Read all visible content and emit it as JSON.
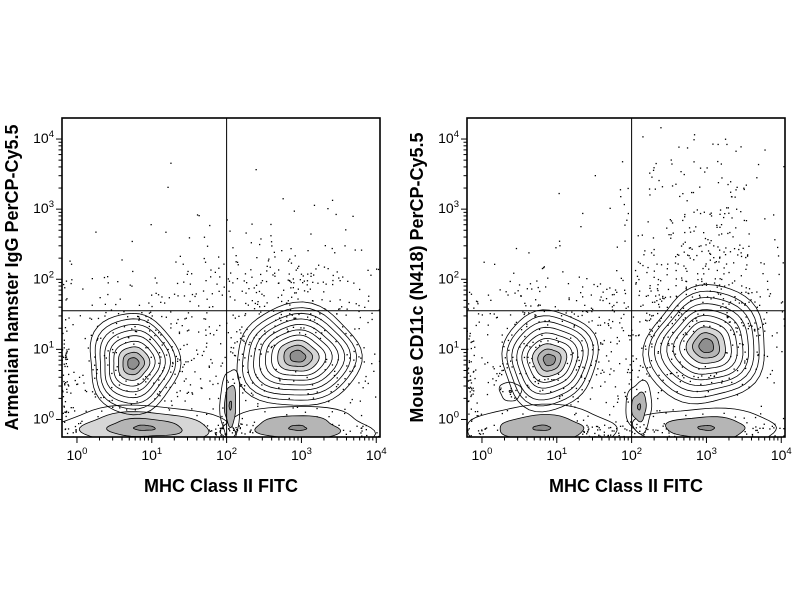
{
  "figure": {
    "background": "#ffffff",
    "ink_color": "#000000",
    "core_fill_colors": [
      "#8f8f8f",
      "#b5b5b5",
      "#d6d6d6"
    ]
  },
  "chart_data": {
    "type": "scatter",
    "subtype": "flow-cytometry-contour",
    "description": "Two-panel log-log flow cytometry contour plots with outlier dots and quadrant gates",
    "x_scale": "log10",
    "y_scale": "log10",
    "xlim_log": [
      -0.2,
      4.05
    ],
    "ylim_log": [
      -0.25,
      4.3
    ],
    "decades": [
      0,
      1,
      2,
      3,
      4
    ],
    "tick_base": "10",
    "plots": [
      {
        "id": "isotype-control",
        "xlabel": "MHC Class II FITC",
        "ylabel": "Armenian hamster IgG PerCP-Cy5.5",
        "quadrant_gate": {
          "x_log": 2.0,
          "y_log": 1.55
        },
        "seed": 13,
        "populations": [
          {
            "name": "mhc-neg-baseline-band",
            "cx": 0.9,
            "cy": -0.12,
            "sx": 1.15,
            "sy": 0.32,
            "rot": 0,
            "levels": 4,
            "wobble": 0.1
          },
          {
            "name": "mhc-pos-baseline-band",
            "cx": 2.95,
            "cy": -0.12,
            "sx": 1.0,
            "sy": 0.3,
            "rot": 0,
            "levels": 3,
            "wobble": 0.1
          },
          {
            "name": "mid-neck",
            "cx": 2.05,
            "cy": 0.2,
            "sx": 0.14,
            "sy": 0.5,
            "rot": 0,
            "levels": 3,
            "wobble": 0.12
          },
          {
            "name": "mhc-neg-main",
            "cx": 0.75,
            "cy": 0.8,
            "sx": 0.62,
            "sy": 0.7,
            "rot": 0,
            "levels": 9,
            "wobble": 0.07
          },
          {
            "name": "mhc-pos-main",
            "cx": 2.95,
            "cy": 0.9,
            "sx": 0.85,
            "sy": 0.72,
            "rot": -5,
            "levels": 10,
            "wobble": 0.07
          }
        ],
        "dot_clusters": [
          {
            "cx": 0.75,
            "cy": 0.8,
            "sx": 0.8,
            "sy": 0.55,
            "count": 260
          },
          {
            "cx": 2.95,
            "cy": 0.95,
            "sx": 0.95,
            "sy": 0.6,
            "count": 320
          },
          {
            "cx": 2.7,
            "cy": 1.85,
            "sx": 0.55,
            "sy": 0.35,
            "count": 130
          },
          {
            "cx": 2.6,
            "cy": 2.4,
            "sx": 0.8,
            "sy": 0.6,
            "count": 45
          },
          {
            "cx": 0.9,
            "cy": 1.75,
            "sx": 0.85,
            "sy": 0.25,
            "count": 40
          },
          {
            "cx": 1.5,
            "cy": 3.0,
            "sx": 1.5,
            "sy": 0.8,
            "count": 10
          },
          {
            "cx": 1.0,
            "cy": -0.15,
            "sx": 1.2,
            "sy": 0.07,
            "count": 160
          },
          {
            "cx": 2.9,
            "cy": -0.15,
            "sx": 0.9,
            "sy": 0.07,
            "count": 120
          },
          {
            "cx": -0.15,
            "cy": 0.6,
            "sx": 0.04,
            "sy": 0.7,
            "count": 70
          }
        ]
      },
      {
        "id": "cd11c-stain",
        "xlabel": "MHC Class II FITC",
        "ylabel": "Mouse CD11c (N418) PerCP-Cy5.5",
        "quadrant_gate": {
          "x_log": 2.0,
          "y_log": 1.55
        },
        "seed": 77,
        "populations": [
          {
            "name": "mhc-neg-baseline-band",
            "cx": 0.8,
            "cy": -0.12,
            "sx": 1.05,
            "sy": 0.3,
            "rot": 0,
            "levels": 3,
            "wobble": 0.1
          },
          {
            "name": "mhc-pos-baseline-band",
            "cx": 3.0,
            "cy": -0.12,
            "sx": 0.95,
            "sy": 0.28,
            "rot": 0,
            "levels": 3,
            "wobble": 0.1
          },
          {
            "name": "mid-blob",
            "cx": 2.1,
            "cy": 0.18,
            "sx": 0.18,
            "sy": 0.35,
            "rot": 0,
            "levels": 3,
            "wobble": 0.12
          },
          {
            "name": "small-satellite",
            "cx": 0.38,
            "cy": 0.4,
            "sx": 0.14,
            "sy": 0.14,
            "rot": 0,
            "levels": 2,
            "wobble": 0.1
          },
          {
            "name": "mhc-neg-main",
            "cx": 0.9,
            "cy": 0.85,
            "sx": 0.65,
            "sy": 0.7,
            "rot": 0,
            "levels": 9,
            "wobble": 0.07
          },
          {
            "name": "cd11c-mhc-pos-main",
            "cx": 3.0,
            "cy": 1.05,
            "sx": 0.8,
            "sy": 0.85,
            "rot": -15,
            "levels": 10,
            "wobble": 0.07
          }
        ],
        "dot_clusters": [
          {
            "cx": 0.9,
            "cy": 0.85,
            "sx": 0.8,
            "sy": 0.55,
            "count": 260
          },
          {
            "cx": 3.0,
            "cy": 1.1,
            "sx": 0.9,
            "sy": 0.65,
            "count": 320
          },
          {
            "cx": 2.95,
            "cy": 2.1,
            "sx": 0.5,
            "sy": 0.6,
            "count": 220
          },
          {
            "cx": 2.9,
            "cy": 3.1,
            "sx": 0.55,
            "sy": 0.45,
            "count": 70
          },
          {
            "cx": 3.1,
            "cy": 3.85,
            "sx": 0.5,
            "sy": 0.25,
            "count": 18
          },
          {
            "cx": 0.9,
            "cy": 1.8,
            "sx": 0.8,
            "sy": 0.3,
            "count": 55
          },
          {
            "cx": 1.7,
            "cy": 1.7,
            "sx": 0.6,
            "sy": 0.2,
            "count": 30
          },
          {
            "cx": 1.5,
            "cy": 2.6,
            "sx": 1.2,
            "sy": 0.8,
            "count": 18
          },
          {
            "cx": 0.9,
            "cy": -0.15,
            "sx": 1.1,
            "sy": 0.07,
            "count": 150
          },
          {
            "cx": 3.0,
            "cy": -0.15,
            "sx": 0.9,
            "sy": 0.07,
            "count": 120
          },
          {
            "cx": -0.15,
            "cy": 0.6,
            "sx": 0.04,
            "sy": 0.7,
            "count": 60
          }
        ]
      }
    ]
  }
}
